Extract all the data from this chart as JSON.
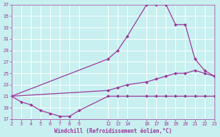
{
  "xlabel": "Windchill (Refroidissement éolien,°C)",
  "bg_color": "#c8f0f0",
  "line_color": "#993399",
  "grid_color": "#aadddd",
  "line1_x": [
    2,
    3,
    4,
    5,
    6,
    7,
    8,
    9,
    12,
    13,
    14,
    16,
    17,
    18,
    19,
    20,
    21,
    22,
    23
  ],
  "line1_y": [
    21,
    20,
    19.5,
    18.5,
    18,
    17.5,
    17.5,
    18.5,
    21,
    21,
    21,
    21,
    21,
    21,
    21,
    21,
    21,
    21,
    21
  ],
  "line2_x": [
    2,
    12,
    13,
    14,
    16,
    17,
    18,
    19,
    20,
    21,
    22,
    23
  ],
  "line2_y": [
    21,
    27.5,
    29,
    31.5,
    37,
    37,
    37,
    33.5,
    33.5,
    27.5,
    25.5,
    24.5
  ],
  "line3_x": [
    2,
    12,
    13,
    14,
    16,
    17,
    18,
    19,
    20,
    21,
    22,
    23
  ],
  "line3_y": [
    21,
    22,
    22.5,
    23,
    23.5,
    24,
    24.5,
    25,
    25,
    25.5,
    25,
    24.5
  ],
  "xlim": [
    2,
    23
  ],
  "ylim": [
    17,
    37
  ],
  "xticks": [
    2,
    3,
    4,
    5,
    6,
    7,
    8,
    9,
    12,
    13,
    14,
    16,
    17,
    18,
    19,
    20,
    21,
    22,
    23
  ],
  "yticks": [
    17,
    19,
    21,
    23,
    25,
    27,
    29,
    31,
    33,
    35,
    37
  ]
}
